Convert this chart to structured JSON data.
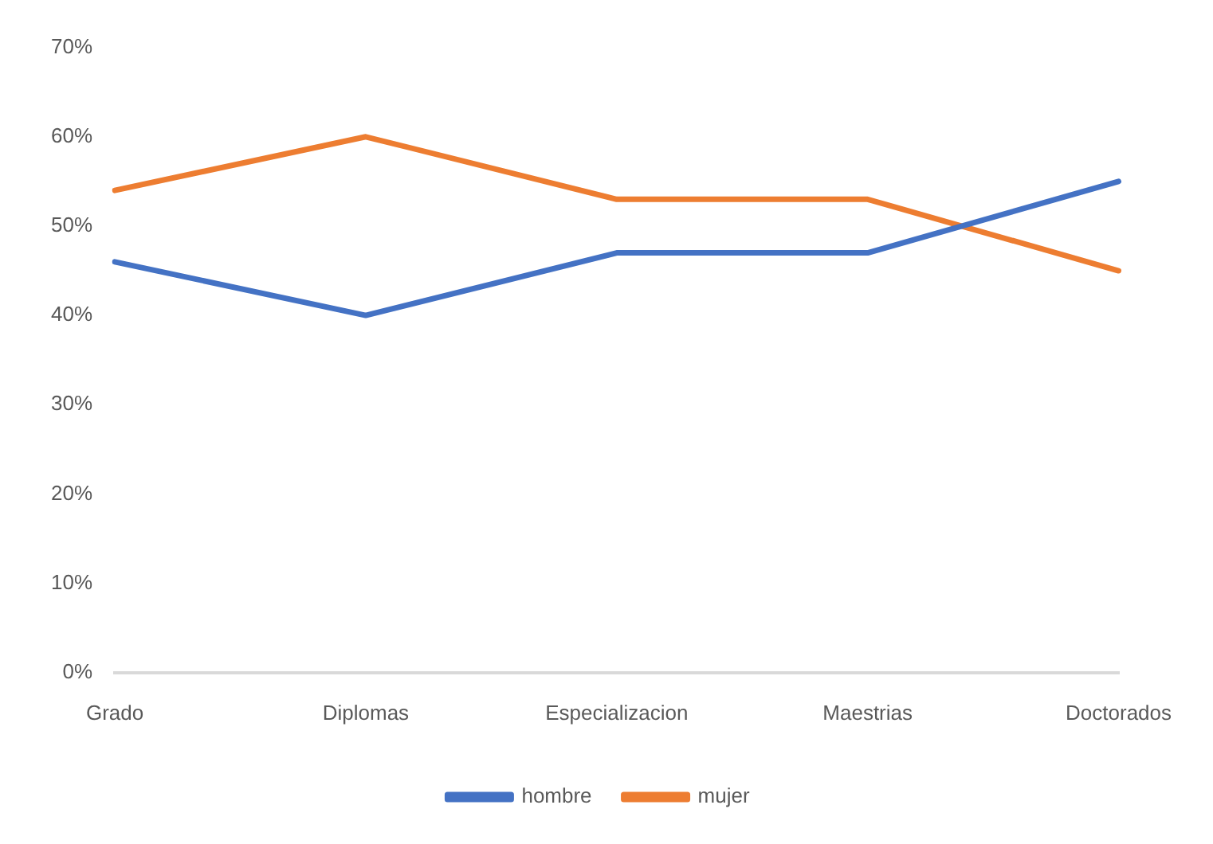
{
  "chart_data": {
    "type": "line",
    "categories": [
      "Grado",
      "Diplomas",
      "Especializacion",
      "Maestrias",
      "Doctorados"
    ],
    "series": [
      {
        "name": "hombre",
        "color": "#4472c4",
        "values": [
          46,
          40,
          47,
          47,
          55
        ]
      },
      {
        "name": "mujer",
        "color": "#ed7d31",
        "values": [
          54,
          60,
          53,
          53,
          45
        ]
      }
    ],
    "ylim": [
      0,
      70
    ],
    "yticks": [
      {
        "value": 0,
        "label": "0%"
      },
      {
        "value": 10,
        "label": "10%"
      },
      {
        "value": 20,
        "label": "20%"
      },
      {
        "value": 30,
        "label": "30%"
      },
      {
        "value": 40,
        "label": "40%"
      },
      {
        "value": 50,
        "label": "50%"
      },
      {
        "value": 60,
        "label": "60%"
      },
      {
        "value": 70,
        "label": "70%"
      }
    ],
    "grid": false,
    "legend": "bottom",
    "marker": "none",
    "line_style": "solid"
  }
}
